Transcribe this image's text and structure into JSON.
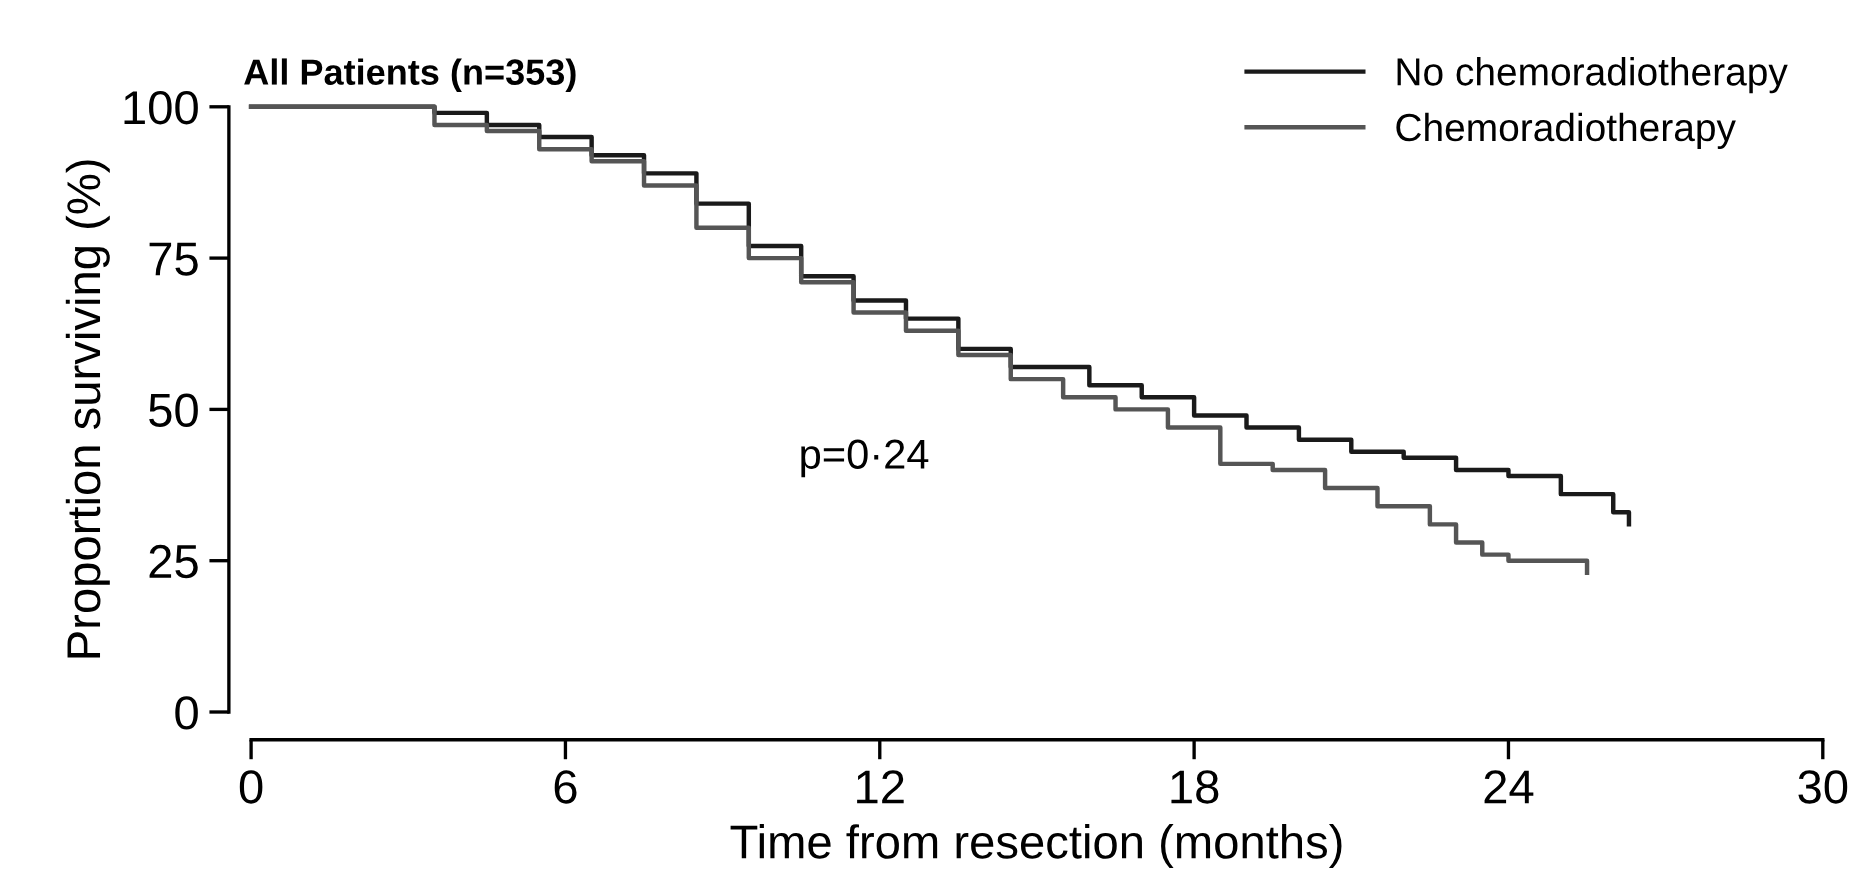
{
  "chart_data": {
    "type": "step",
    "title": "All Patients (n=353)",
    "xlabel": "Time from resection (months)",
    "ylabel": "Proportion surviving (%)",
    "xlim": [
      0,
      30
    ],
    "ylim": [
      0,
      100
    ],
    "xticks": [
      0,
      6,
      12,
      18,
      24,
      30
    ],
    "yticks": [
      0,
      25,
      50,
      75,
      100
    ],
    "grid": false,
    "legend": "top right",
    "marker": "none",
    "line_style": "solid",
    "annotations": [
      "p=0·24"
    ],
    "series": [
      {
        "name": "No chemoradiotherapy",
        "color": "#1a1a1a",
        "x": [
          0,
          3,
          3.5,
          4.5,
          5.5,
          6.5,
          7.5,
          8.5,
          9.5,
          10.5,
          11.5,
          12.5,
          13.5,
          14.5,
          16,
          17,
          18,
          19,
          20,
          21,
          22,
          23,
          24,
          25,
          26,
          26.3
        ],
        "values": [
          100,
          100,
          99,
          97,
          95,
          92,
          89,
          84,
          77,
          72,
          68,
          65,
          60,
          57,
          54,
          52,
          49,
          47,
          45,
          43,
          42,
          40,
          39,
          36,
          33,
          31
        ]
      },
      {
        "name": "Chemoradiotherapy",
        "color": "#555555",
        "x": [
          0,
          2,
          3.5,
          4.5,
          5.5,
          6.5,
          7.5,
          8.5,
          9.5,
          10.5,
          11.5,
          12.5,
          13.5,
          14.5,
          15.5,
          16.5,
          17.5,
          18.5,
          19.5,
          20.5,
          21.5,
          22.5,
          23,
          23.5,
          24,
          25.5
        ],
        "values": [
          100,
          100,
          97,
          96,
          93,
          91,
          87,
          80,
          75,
          71,
          66,
          63,
          59,
          55,
          52,
          50,
          47,
          41,
          40,
          37,
          34,
          31,
          28,
          26,
          25,
          23
        ]
      }
    ]
  }
}
